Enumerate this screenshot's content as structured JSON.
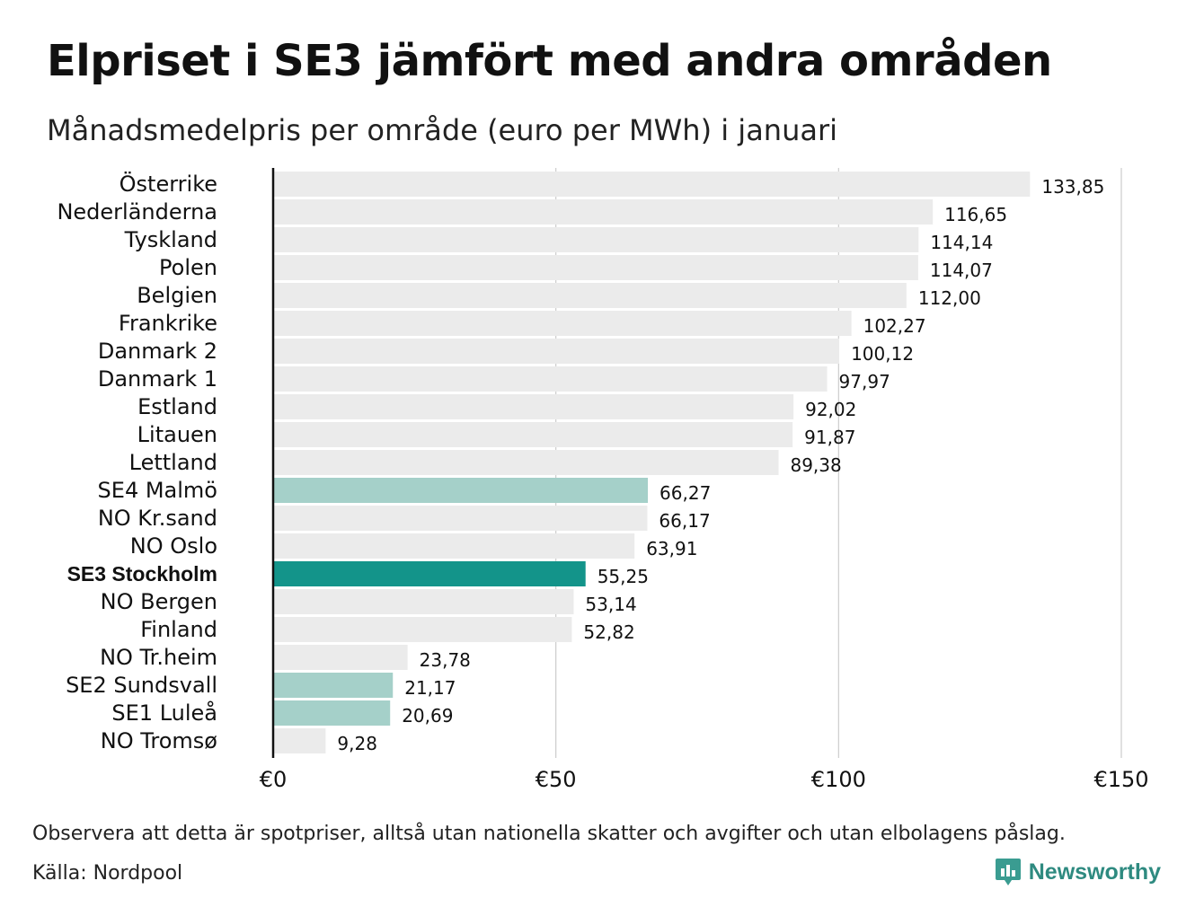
{
  "title": "Elpriset i SE3 jämfört med andra områden",
  "subtitle": "Månadsmedelpris per område (euro per MWh) i januari",
  "footnote": "Observera att detta är spotpriser, alltså utan nationella skatter och avgifter och utan elbolagens påslag.",
  "source": "Källa: Nordpool",
  "logo": {
    "name": "Newsworthy",
    "icon": "bar-chart-speech-bubble-icon"
  },
  "colors": {
    "default_bar": "#ebebeb",
    "se_bar": "#a5d0c9",
    "highlight_bar": "#13948a",
    "axis": "#111111",
    "grid": "#cccccc"
  },
  "chart_data": {
    "type": "bar",
    "orientation": "horizontal",
    "categories": [
      "Österrike",
      "Nederländerna",
      "Tyskland",
      "Polen",
      "Belgien",
      "Frankrike",
      "Danmark  2",
      "Danmark  1",
      "Estland",
      "Litauen",
      "Lettland",
      "SE4  Malmö",
      "NO Kr.sand",
      "NO Oslo",
      "SE3 Stockholm",
      "NO Bergen",
      "Finland",
      "NO Tr.heim",
      "SE2  Sundsvall",
      "SE1  Luleå",
      "NO Tromsø"
    ],
    "values": [
      133.85,
      116.65,
      114.14,
      114.07,
      112.0,
      102.27,
      100.12,
      97.97,
      92.02,
      91.87,
      89.38,
      66.27,
      66.17,
      63.91,
      55.25,
      53.14,
      52.82,
      23.78,
      21.17,
      20.69,
      9.28
    ],
    "value_labels": [
      "133,85",
      "116,65",
      "114,14",
      "114,07",
      "112,00",
      "102,27",
      "100,12",
      "97,97",
      "92,02",
      "91,87",
      "89,38",
      "66,27",
      "66,17",
      "63,91",
      "55,25",
      "53,14",
      "52,82",
      "23,78",
      "21,17",
      "20,69",
      "9,28"
    ],
    "bar_style": [
      "default",
      "default",
      "default",
      "default",
      "default",
      "default",
      "default",
      "default",
      "default",
      "default",
      "default",
      "se",
      "default",
      "default",
      "highlight",
      "default",
      "default",
      "default",
      "se",
      "se",
      "default"
    ],
    "xlim": [
      0,
      150
    ],
    "xticks": [
      0,
      50,
      100,
      150
    ],
    "xtick_labels": [
      "€0",
      "€50",
      "€100",
      "€150"
    ],
    "grid": "vertical"
  }
}
